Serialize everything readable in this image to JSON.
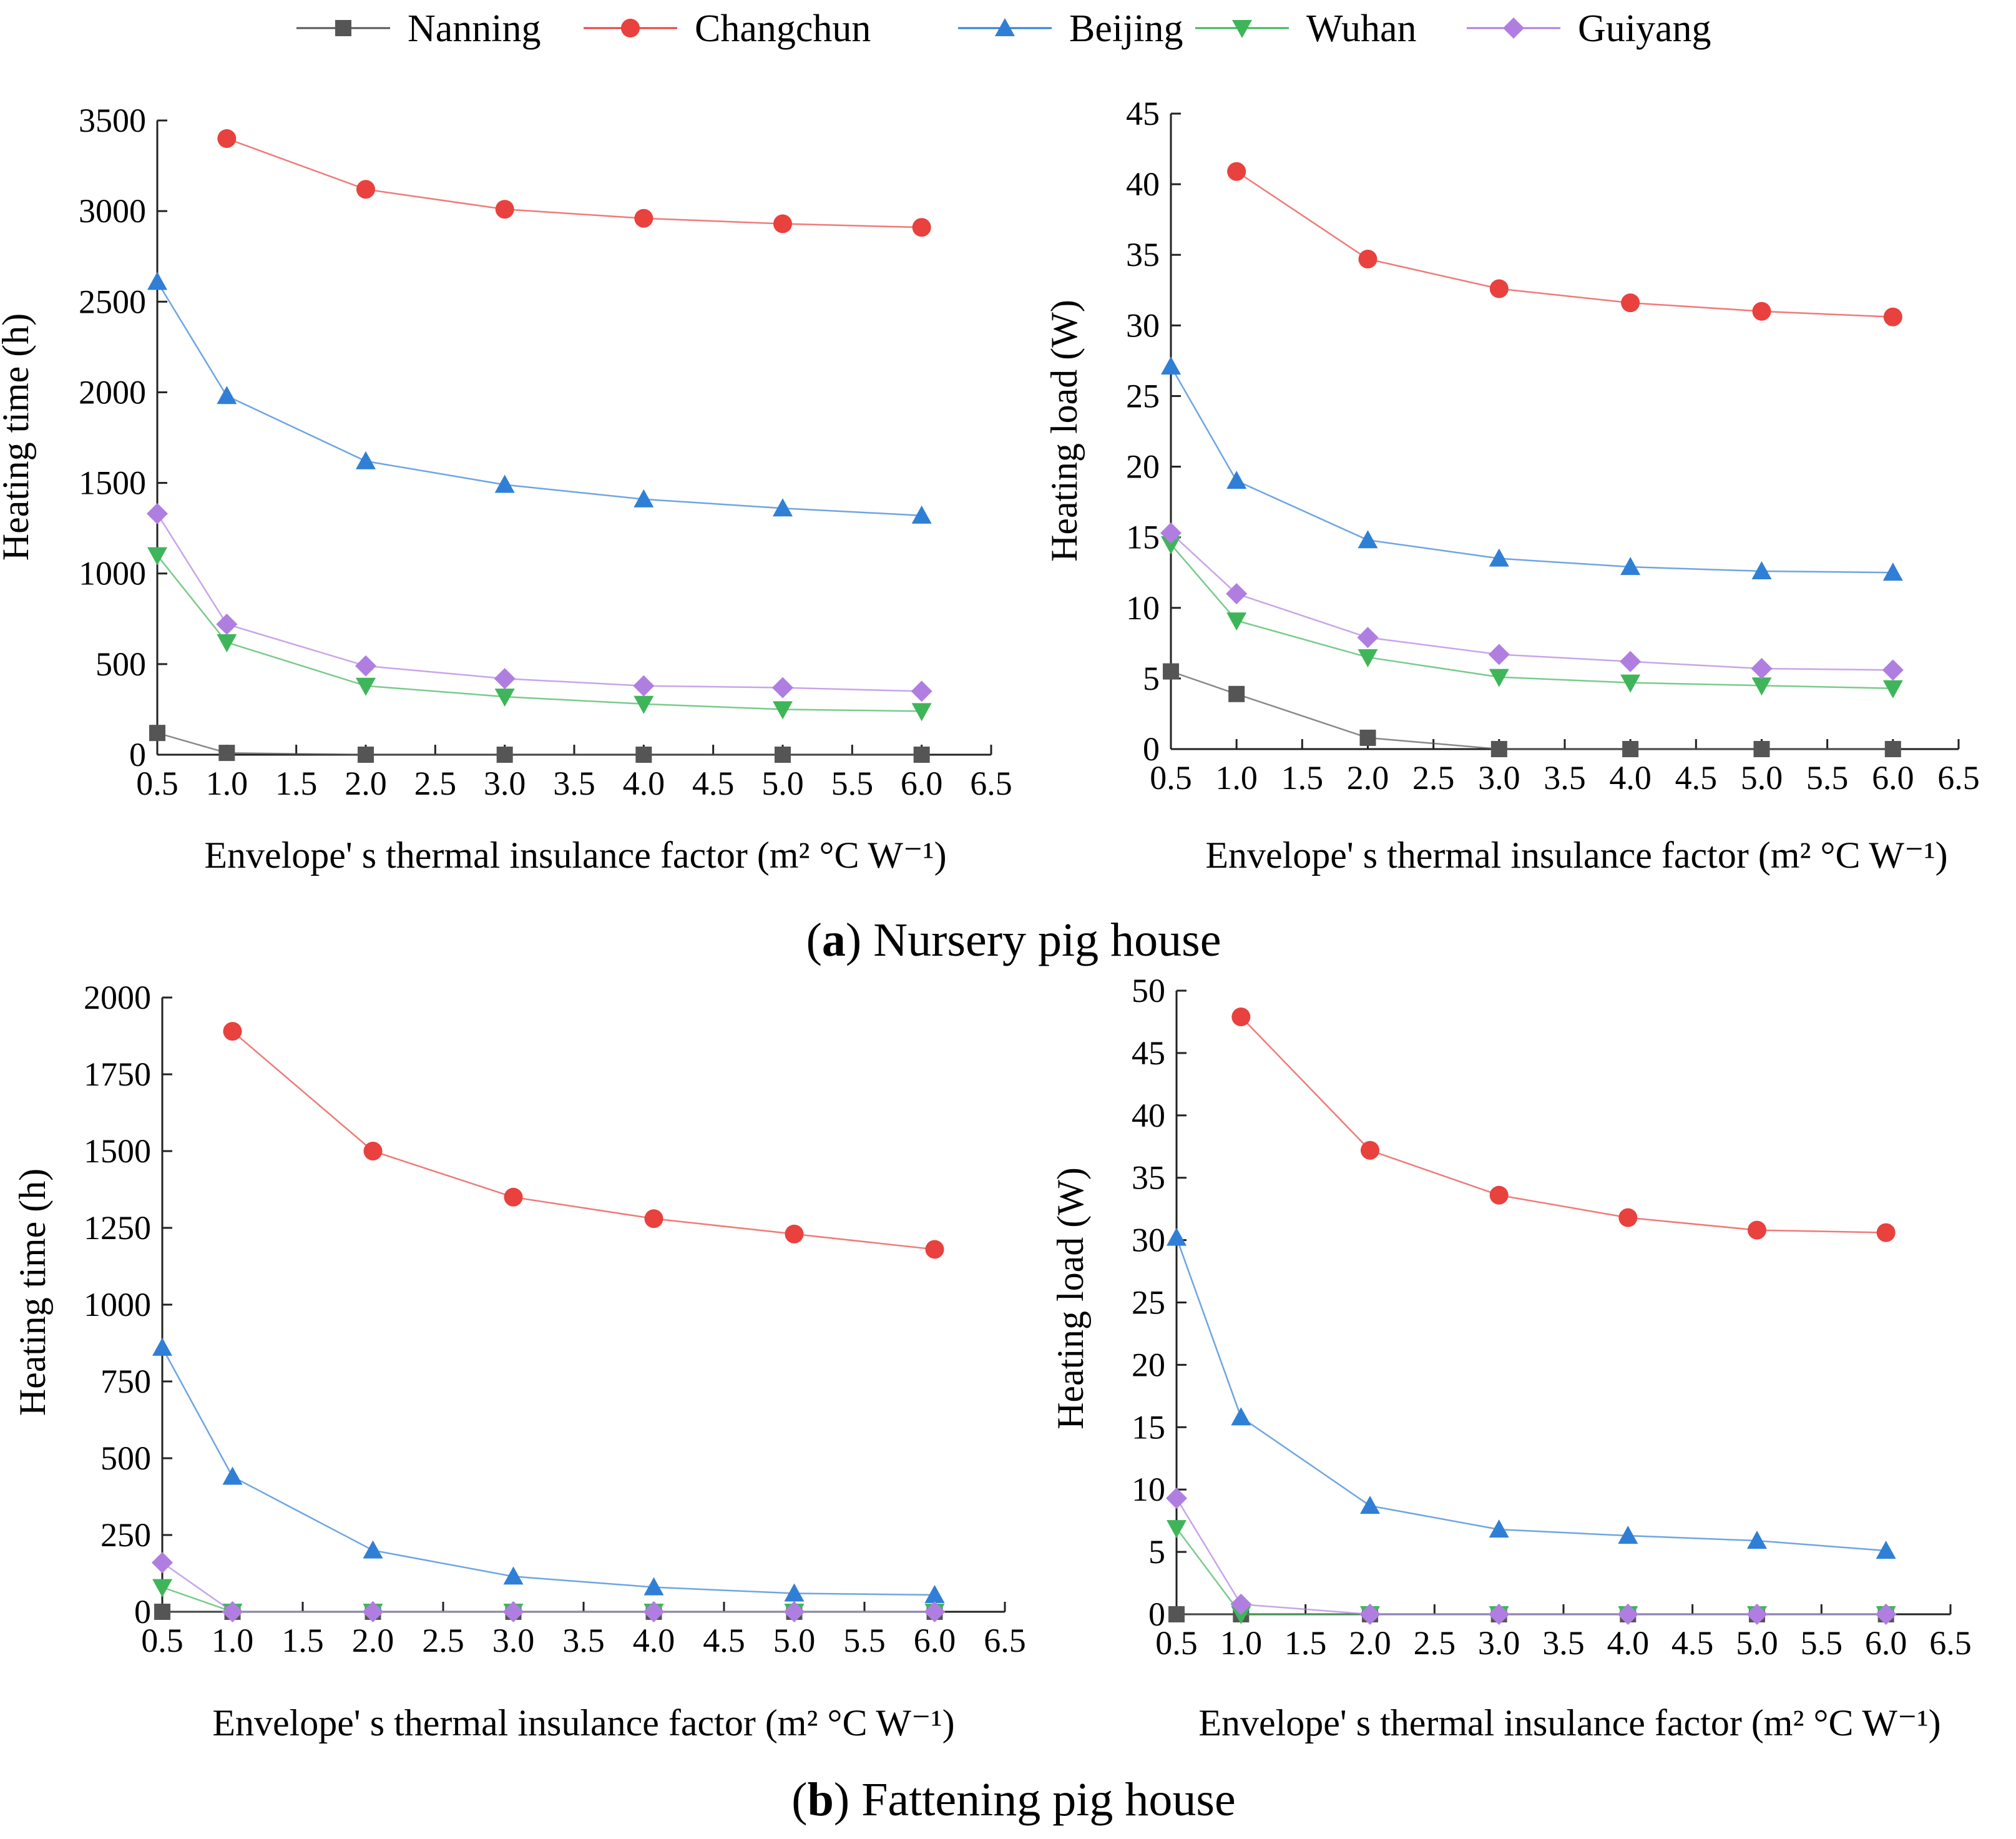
{
  "legend": [
    {
      "name": "Nanning",
      "color": "#555555",
      "marker": "square"
    },
    {
      "name": "Changchun",
      "color": "#e8413e",
      "marker": "circle"
    },
    {
      "name": "Beijing",
      "color": "#2f7fd6",
      "marker": "triangle-up"
    },
    {
      "name": "Wuhan",
      "color": "#3fb55a",
      "marker": "triangle-down"
    },
    {
      "name": "Guiyang",
      "color": "#b07ee0",
      "marker": "diamond"
    }
  ],
  "captions": {
    "a": {
      "letter": "a",
      "text": " Nursery pig house"
    },
    "b": {
      "letter": "b",
      "text": " Fattening pig house"
    }
  },
  "chart_data": [
    {
      "id": "a-left",
      "type": "line",
      "panel": "a",
      "xlabel": "Envelope' s thermal insulance factor (m² °C W⁻¹)",
      "ylabel": "Heating time (h)",
      "xlim": [
        0.5,
        6.5
      ],
      "ylim": [
        0,
        3500
      ],
      "xticks": [
        "0.5",
        "1.0",
        "1.5",
        "2.0",
        "2.5",
        "3.0",
        "3.5",
        "4.0",
        "4.5",
        "5.0",
        "5.5",
        "6.0",
        "6.5"
      ],
      "yticks": [
        "0",
        "500",
        "1000",
        "1500",
        "2000",
        "2500",
        "3000",
        "3500"
      ],
      "series": [
        {
          "name": "Nanning",
          "x": [
            0.5,
            1,
            2,
            3,
            4,
            5,
            6
          ],
          "y": [
            120,
            10,
            0,
            0,
            0,
            0,
            0
          ]
        },
        {
          "name": "Changchun",
          "x": [
            1,
            2,
            3,
            4,
            5,
            6
          ],
          "y": [
            3400,
            3120,
            3010,
            2960,
            2930,
            2910
          ]
        },
        {
          "name": "Beijing",
          "x": [
            0.5,
            1,
            2,
            3,
            4,
            5,
            6
          ],
          "y": [
            2610,
            1980,
            1620,
            1490,
            1410,
            1360,
            1320
          ]
        },
        {
          "name": "Wuhan",
          "x": [
            0.5,
            1,
            2,
            3,
            4,
            5,
            6
          ],
          "y": [
            1100,
            620,
            380,
            320,
            280,
            250,
            240
          ]
        },
        {
          "name": "Guiyang",
          "x": [
            0.5,
            1,
            2,
            3,
            4,
            5,
            6
          ],
          "y": [
            1330,
            720,
            490,
            420,
            380,
            370,
            350
          ]
        }
      ]
    },
    {
      "id": "a-right",
      "type": "line",
      "panel": "a",
      "xlabel": "Envelope' s thermal insulance factor (m² °C W⁻¹)",
      "ylabel": "Heating load (W)",
      "xlim": [
        0.5,
        6.5
      ],
      "ylim": [
        0,
        45
      ],
      "xticks": [
        "0.5",
        "1.0",
        "1.5",
        "2.0",
        "2.5",
        "3.0",
        "3.5",
        "4.0",
        "4.5",
        "5.0",
        "5.5",
        "6.0",
        "6.5"
      ],
      "yticks": [
        "0",
        "5",
        "10",
        "15",
        "20",
        "25",
        "30",
        "35",
        "40",
        "45"
      ],
      "series": [
        {
          "name": "Nanning",
          "x": [
            0.5,
            1,
            2,
            3,
            4,
            5,
            6
          ],
          "y": [
            5.5,
            3.9,
            0.8,
            0,
            0,
            0,
            0
          ]
        },
        {
          "name": "Changchun",
          "x": [
            1,
            2,
            3,
            4,
            5,
            6
          ],
          "y": [
            40.9,
            34.7,
            32.6,
            31.6,
            31.0,
            30.6
          ]
        },
        {
          "name": "Beijing",
          "x": [
            0.5,
            1,
            2,
            3,
            4,
            5,
            6
          ],
          "y": [
            27.1,
            19.0,
            14.8,
            13.5,
            12.9,
            12.6,
            12.5
          ]
        },
        {
          "name": "Wuhan",
          "x": [
            0.5,
            1,
            2,
            3,
            4,
            5,
            6
          ],
          "y": [
            14.5,
            9.1,
            6.5,
            5.1,
            4.7,
            4.5,
            4.3
          ]
        },
        {
          "name": "Guiyang",
          "x": [
            0.5,
            1,
            2,
            3,
            4,
            5,
            6
          ],
          "y": [
            15.3,
            11.0,
            7.9,
            6.7,
            6.2,
            5.7,
            5.6
          ]
        }
      ]
    },
    {
      "id": "b-left",
      "type": "line",
      "panel": "b",
      "xlabel": "Envelope' s thermal insulance factor (m² °C W⁻¹)",
      "ylabel": "Heating time (h)",
      "xlim": [
        0.5,
        6.5
      ],
      "ylim": [
        0,
        2000
      ],
      "xticks": [
        "0.5",
        "1.0",
        "1.5",
        "2.0",
        "2.5",
        "3.0",
        "3.5",
        "4.0",
        "4.5",
        "5.0",
        "5.5",
        "6.0",
        "6.5"
      ],
      "yticks": [
        "0",
        "250",
        "500",
        "750",
        "1000",
        "1250",
        "1500",
        "1750",
        "2000"
      ],
      "series": [
        {
          "name": "Nanning",
          "x": [
            0.5,
            1,
            2,
            3,
            4,
            5,
            6
          ],
          "y": [
            0,
            0,
            0,
            0,
            0,
            0,
            0
          ]
        },
        {
          "name": "Changchun",
          "x": [
            1,
            2,
            3,
            4,
            5,
            6
          ],
          "y": [
            1890,
            1500,
            1350,
            1280,
            1230,
            1180
          ]
        },
        {
          "name": "Beijing",
          "x": [
            0.5,
            1,
            2,
            3,
            4,
            5,
            6
          ],
          "y": [
            860,
            440,
            200,
            115,
            80,
            60,
            55
          ]
        },
        {
          "name": "Wuhan",
          "x": [
            0.5,
            1,
            2,
            3,
            4,
            5,
            6
          ],
          "y": [
            80,
            0,
            0,
            0,
            0,
            0,
            0
          ]
        },
        {
          "name": "Guiyang",
          "x": [
            0.5,
            1,
            2,
            3,
            4,
            5,
            6
          ],
          "y": [
            160,
            0,
            0,
            0,
            0,
            0,
            0
          ]
        }
      ]
    },
    {
      "id": "b-right",
      "type": "line",
      "panel": "b",
      "xlabel": "Envelope' s thermal insulance factor (m² °C W⁻¹)",
      "ylabel": "Heating load (W)",
      "xlim": [
        0.5,
        6.5
      ],
      "ylim": [
        0,
        50
      ],
      "xticks": [
        "0.5",
        "1.0",
        "1.5",
        "2.0",
        "2.5",
        "3.0",
        "3.5",
        "4.0",
        "4.5",
        "5.0",
        "5.5",
        "6.0",
        "6.5"
      ],
      "yticks": [
        "0",
        "5",
        "10",
        "15",
        "20",
        "25",
        "30",
        "35",
        "40",
        "45",
        "50"
      ],
      "series": [
        {
          "name": "Nanning",
          "x": [
            0.5,
            1,
            2,
            3,
            4,
            5,
            6
          ],
          "y": [
            0,
            0,
            0,
            0,
            0,
            0,
            0
          ]
        },
        {
          "name": "Changchun",
          "x": [
            1,
            2,
            3,
            4,
            5,
            6
          ],
          "y": [
            47.9,
            37.2,
            33.6,
            31.8,
            30.8,
            30.6
          ]
        },
        {
          "name": "Beijing",
          "x": [
            0.5,
            1,
            2,
            3,
            4,
            5,
            6
          ],
          "y": [
            30.2,
            15.8,
            8.7,
            6.8,
            6.3,
            5.9,
            5.1
          ]
        },
        {
          "name": "Wuhan",
          "x": [
            0.5,
            1,
            2,
            3,
            4,
            5,
            6
          ],
          "y": [
            6.9,
            0,
            0,
            0,
            0,
            0,
            0
          ]
        },
        {
          "name": "Guiyang",
          "x": [
            0.5,
            1,
            2,
            3,
            4,
            5,
            6
          ],
          "y": [
            9.3,
            0.8,
            0,
            0,
            0,
            0,
            0
          ]
        }
      ]
    }
  ]
}
